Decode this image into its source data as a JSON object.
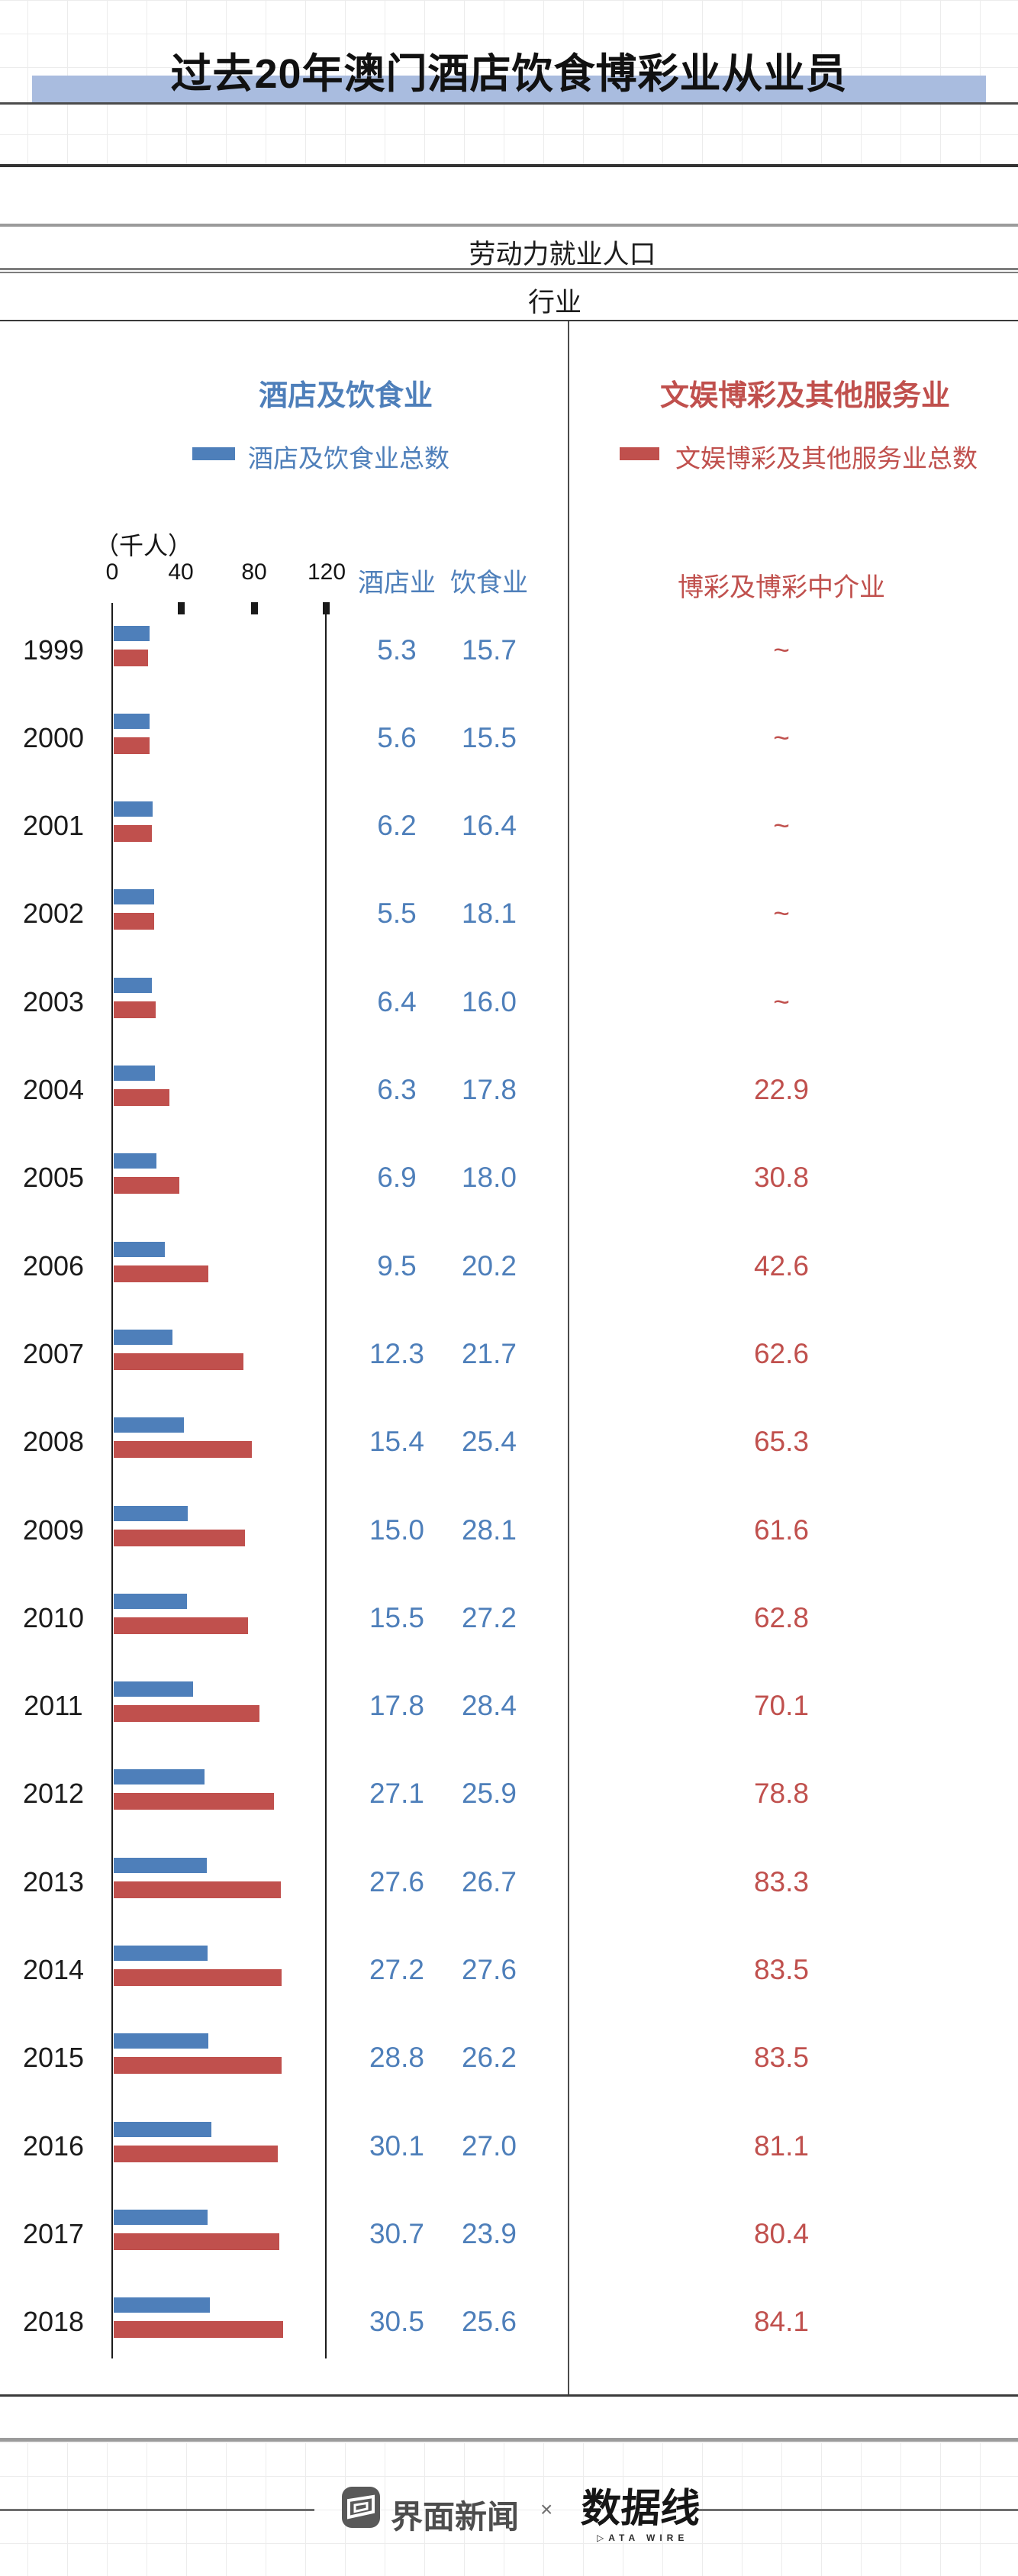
{
  "title": "过去20年澳门酒店饮食博彩业从业员",
  "table_header": {
    "population_label": "劳动力就业人口",
    "industry_label": "行业"
  },
  "sections": {
    "left": {
      "title": "酒店及饮食业",
      "legend_label": "酒店及饮食业总数"
    },
    "right": {
      "title": "文娱博彩及其他服务业",
      "legend_label": "文娱博彩及其他服务业总数"
    }
  },
  "axis": {
    "unit_label": "（千人）",
    "ticks": [
      "0",
      "40",
      "80",
      "120"
    ]
  },
  "columns": {
    "hotel": "酒店业",
    "catering": "饮食业",
    "gaming": "博彩及博彩中介业"
  },
  "rows": [
    {
      "year": "1999",
      "hotel": "5.3",
      "catering": "15.7",
      "gaming": "~",
      "blue_total": 21.0,
      "red_total": 20.0
    },
    {
      "year": "2000",
      "hotel": "5.6",
      "catering": "15.5",
      "gaming": "~",
      "blue_total": 21.1,
      "red_total": 21.0
    },
    {
      "year": "2001",
      "hotel": "6.2",
      "catering": "16.4",
      "gaming": "~",
      "blue_total": 22.6,
      "red_total": 22.0
    },
    {
      "year": "2002",
      "hotel": "5.5",
      "catering": "18.1",
      "gaming": "~",
      "blue_total": 23.6,
      "red_total": 23.5
    },
    {
      "year": "2003",
      "hotel": "6.4",
      "catering": "16.0",
      "gaming": "~",
      "blue_total": 22.4,
      "red_total": 24.5
    },
    {
      "year": "2004",
      "hotel": "6.3",
      "catering": "17.8",
      "gaming": "22.9",
      "blue_total": 24.1,
      "red_total": 32.4
    },
    {
      "year": "2005",
      "hotel": "6.9",
      "catering": "18.0",
      "gaming": "30.8",
      "blue_total": 24.9,
      "red_total": 38.4
    },
    {
      "year": "2006",
      "hotel": "9.5",
      "catering": "20.2",
      "gaming": "42.6",
      "blue_total": 29.7,
      "red_total": 55.0
    },
    {
      "year": "2007",
      "hotel": "12.3",
      "catering": "21.7",
      "gaming": "62.6",
      "blue_total": 34.0,
      "red_total": 75.7
    },
    {
      "year": "2008",
      "hotel": "15.4",
      "catering": "25.4",
      "gaming": "65.3",
      "blue_total": 40.8,
      "red_total": 80.3
    },
    {
      "year": "2009",
      "hotel": "15.0",
      "catering": "28.1",
      "gaming": "61.6",
      "blue_total": 43.1,
      "red_total": 76.5
    },
    {
      "year": "2010",
      "hotel": "15.5",
      "catering": "27.2",
      "gaming": "62.8",
      "blue_total": 42.7,
      "red_total": 78.3
    },
    {
      "year": "2011",
      "hotel": "17.8",
      "catering": "28.4",
      "gaming": "70.1",
      "blue_total": 46.2,
      "red_total": 84.8
    },
    {
      "year": "2012",
      "hotel": "27.1",
      "catering": "25.9",
      "gaming": "78.8",
      "blue_total": 53.0,
      "red_total": 93.4
    },
    {
      "year": "2013",
      "hotel": "27.6",
      "catering": "26.7",
      "gaming": "83.3",
      "blue_total": 54.3,
      "red_total": 97.2
    },
    {
      "year": "2014",
      "hotel": "27.2",
      "catering": "27.6",
      "gaming": "83.5",
      "blue_total": 54.8,
      "red_total": 97.9
    },
    {
      "year": "2015",
      "hotel": "28.8",
      "catering": "26.2",
      "gaming": "83.5",
      "blue_total": 55.0,
      "red_total": 97.9
    },
    {
      "year": "2016",
      "hotel": "30.1",
      "catering": "27.0",
      "gaming": "81.1",
      "blue_total": 57.1,
      "red_total": 95.6
    },
    {
      "year": "2017",
      "hotel": "30.7",
      "catering": "23.9",
      "gaming": "80.4",
      "blue_total": 54.6,
      "red_total": 96.4
    },
    {
      "year": "2018",
      "hotel": "30.5",
      "catering": "25.6",
      "gaming": "84.1",
      "blue_total": 56.1,
      "red_total": 98.7
    }
  ],
  "footer": {
    "jiemian_label": "界面新闻",
    "separator": "×",
    "datawire_label": "数据线",
    "datawire_subtitle": "▷ATA WIRE"
  },
  "colors": {
    "blue": "#4e7fba",
    "red": "#c0504d",
    "title_band": "#a9bcdf"
  },
  "chart_data": {
    "type": "bar",
    "orientation": "horizontal",
    "title": "过去20年澳门酒店饮食博彩业从业员",
    "unit": "千人",
    "categories": [
      1999,
      2000,
      2001,
      2002,
      2003,
      2004,
      2005,
      2006,
      2007,
      2008,
      2009,
      2010,
      2011,
      2012,
      2013,
      2014,
      2015,
      2016,
      2017,
      2018
    ],
    "series": [
      {
        "name": "酒店业",
        "values": [
          5.3,
          5.6,
          6.2,
          5.5,
          6.4,
          6.3,
          6.9,
          9.5,
          12.3,
          15.4,
          15.0,
          15.5,
          17.8,
          27.1,
          27.6,
          27.2,
          28.8,
          30.1,
          30.7,
          30.5
        ]
      },
      {
        "name": "饮食业",
        "values": [
          15.7,
          15.5,
          16.4,
          18.1,
          16.0,
          17.8,
          18.0,
          20.2,
          21.7,
          25.4,
          28.1,
          27.2,
          28.4,
          25.9,
          26.7,
          27.6,
          26.2,
          27.0,
          23.9,
          25.6
        ]
      },
      {
        "name": "博彩及博彩中介业",
        "values": [
          null,
          null,
          null,
          null,
          null,
          22.9,
          30.8,
          42.6,
          62.6,
          65.3,
          61.6,
          62.8,
          70.1,
          78.8,
          83.3,
          83.5,
          83.5,
          81.1,
          80.4,
          84.1
        ]
      },
      {
        "name": "酒店及饮食业总数（蓝色条）",
        "values": [
          21.0,
          21.1,
          22.6,
          23.6,
          22.4,
          24.1,
          24.9,
          29.7,
          34.0,
          40.8,
          43.1,
          42.7,
          46.2,
          53.0,
          54.3,
          54.8,
          55.0,
          57.1,
          54.6,
          56.1
        ]
      },
      {
        "name": "文娱博彩及其他服务业总数（红色条，按条长估读）",
        "values": [
          20.0,
          21.0,
          22.0,
          23.5,
          24.5,
          32.4,
          38.4,
          55.0,
          75.7,
          80.3,
          76.5,
          78.3,
          84.8,
          93.4,
          97.2,
          97.9,
          97.9,
          95.6,
          96.4,
          98.7
        ]
      }
    ],
    "xlim": [
      0,
      120
    ],
    "ticks": [
      0,
      40,
      80,
      120
    ],
    "legend": [
      "酒店及饮食业总数",
      "文娱博彩及其他服务业总数"
    ],
    "legend_position": "top",
    "grid": false,
    "colors": {
      "酒店及饮食业总数": "#4e7fba",
      "文娱博彩及其他服务业总数": "#c0504d"
    }
  }
}
